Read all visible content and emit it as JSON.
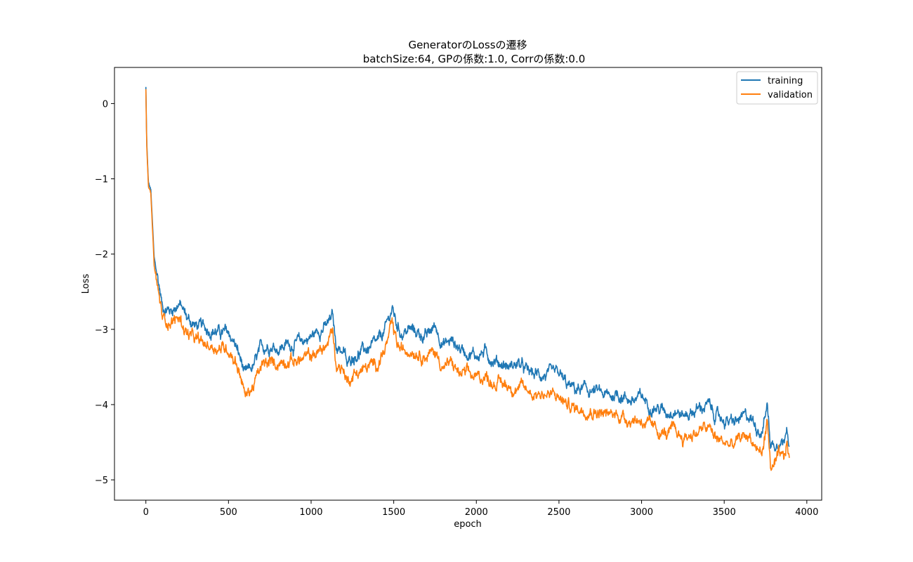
{
  "chart_data": {
    "type": "line",
    "title": "GeneratorのLossの遷移",
    "subtitle": "batchSize:64, GPの係数:1.0, Corrの係数:0.0",
    "xlabel": "epoch",
    "ylabel": "Loss",
    "xlim": [
      -190,
      4090
    ],
    "ylim": [
      -5.27,
      0.48
    ],
    "x_ticks": [
      0,
      500,
      1000,
      1500,
      2000,
      2500,
      3000,
      3500,
      4000
    ],
    "y_ticks": [
      0,
      -1,
      -2,
      -3,
      -4,
      -5
    ],
    "x_tick_labels": [
      "0",
      "500",
      "1000",
      "1500",
      "2000",
      "2500",
      "3000",
      "3500",
      "4000"
    ],
    "y_tick_labels": [
      "0",
      "−1",
      "−2",
      "−3",
      "−4",
      "−5"
    ],
    "grid": false,
    "legend_position": "top-right",
    "series": [
      {
        "name": "training",
        "color": "#1f77b4",
        "x": [
          0,
          5,
          15,
          30,
          50,
          70,
          90,
          100,
          150,
          200,
          250,
          300,
          350,
          400,
          450,
          500,
          540,
          580,
          600,
          650,
          700,
          750,
          800,
          850,
          900,
          950,
          1000,
          1050,
          1100,
          1130,
          1150,
          1200,
          1220,
          1250,
          1300,
          1350,
          1400,
          1450,
          1490,
          1520,
          1550,
          1600,
          1650,
          1700,
          1750,
          1800,
          1850,
          1900,
          1950,
          2000,
          2050,
          2100,
          2150,
          2200,
          2250,
          2300,
          2350,
          2400,
          2450,
          2500,
          2550,
          2600,
          2650,
          2700,
          2750,
          2800,
          2850,
          2900,
          2950,
          3000,
          3050,
          3100,
          3150,
          3200,
          3250,
          3300,
          3350,
          3400,
          3450,
          3500,
          3550,
          3600,
          3650,
          3700,
          3730,
          3760,
          3780,
          3800,
          3830,
          3860,
          3880,
          3895
        ],
        "y": [
          0.22,
          -0.5,
          -1.05,
          -1.15,
          -2.05,
          -2.3,
          -2.55,
          -2.7,
          -2.75,
          -2.65,
          -2.85,
          -2.95,
          -2.98,
          -3.0,
          -3.05,
          -3.05,
          -3.2,
          -3.45,
          -3.62,
          -3.5,
          -3.25,
          -3.2,
          -3.25,
          -3.2,
          -3.2,
          -3.15,
          -3.1,
          -3.0,
          -2.95,
          -2.82,
          -3.2,
          -3.3,
          -3.5,
          -3.35,
          -3.3,
          -3.25,
          -3.2,
          -3.0,
          -2.72,
          -2.95,
          -3.05,
          -3.0,
          -3.05,
          -3.1,
          -2.95,
          -3.2,
          -3.15,
          -3.25,
          -3.3,
          -3.35,
          -3.3,
          -3.4,
          -3.45,
          -3.5,
          -3.45,
          -3.55,
          -3.6,
          -3.6,
          -3.62,
          -3.6,
          -3.75,
          -3.8,
          -3.8,
          -3.82,
          -3.85,
          -3.9,
          -3.85,
          -3.9,
          -3.95,
          -3.9,
          -4.0,
          -4.05,
          -4.1,
          -4.05,
          -4.15,
          -4.1,
          -4.05,
          -4.0,
          -4.15,
          -4.2,
          -4.25,
          -4.2,
          -4.15,
          -4.3,
          -4.35,
          -4.0,
          -4.5,
          -4.55,
          -4.45,
          -4.5,
          -4.2,
          -4.55
        ]
      },
      {
        "name": "validation",
        "color": "#ff7f0e",
        "x": [
          0,
          5,
          15,
          30,
          50,
          70,
          90,
          100,
          150,
          200,
          250,
          300,
          350,
          400,
          450,
          500,
          540,
          580,
          600,
          650,
          700,
          750,
          800,
          850,
          900,
          950,
          1000,
          1050,
          1100,
          1130,
          1150,
          1200,
          1220,
          1250,
          1300,
          1350,
          1400,
          1450,
          1490,
          1520,
          1550,
          1600,
          1650,
          1700,
          1750,
          1800,
          1850,
          1900,
          1950,
          2000,
          2050,
          2100,
          2150,
          2200,
          2250,
          2300,
          2350,
          2400,
          2450,
          2500,
          2550,
          2600,
          2650,
          2700,
          2750,
          2800,
          2850,
          2900,
          2950,
          3000,
          3050,
          3100,
          3150,
          3200,
          3250,
          3300,
          3350,
          3400,
          3450,
          3500,
          3550,
          3600,
          3650,
          3700,
          3730,
          3760,
          3780,
          3800,
          3830,
          3860,
          3880,
          3895
        ],
        "y": [
          0.18,
          -0.55,
          -1.1,
          -1.2,
          -2.15,
          -2.45,
          -2.7,
          -2.85,
          -2.9,
          -2.85,
          -3.05,
          -3.15,
          -3.2,
          -3.22,
          -3.25,
          -3.25,
          -3.4,
          -3.65,
          -3.9,
          -3.75,
          -3.5,
          -3.45,
          -3.45,
          -3.4,
          -3.42,
          -3.4,
          -3.35,
          -3.3,
          -3.2,
          -3.0,
          -3.45,
          -3.55,
          -3.7,
          -3.6,
          -3.55,
          -3.5,
          -3.45,
          -3.25,
          -2.95,
          -3.2,
          -3.3,
          -3.25,
          -3.3,
          -3.35,
          -3.3,
          -3.5,
          -3.45,
          -3.6,
          -3.6,
          -3.65,
          -3.62,
          -3.7,
          -3.72,
          -3.75,
          -3.78,
          -3.8,
          -3.85,
          -3.85,
          -3.88,
          -3.9,
          -4.0,
          -4.05,
          -4.05,
          -4.08,
          -4.1,
          -4.15,
          -4.12,
          -4.18,
          -4.2,
          -4.2,
          -4.3,
          -4.35,
          -4.4,
          -4.35,
          -4.45,
          -4.4,
          -4.35,
          -4.3,
          -4.45,
          -4.5,
          -4.55,
          -4.45,
          -4.4,
          -4.6,
          -4.65,
          -4.2,
          -4.8,
          -4.85,
          -4.7,
          -4.75,
          -4.5,
          -4.75
        ]
      }
    ]
  }
}
